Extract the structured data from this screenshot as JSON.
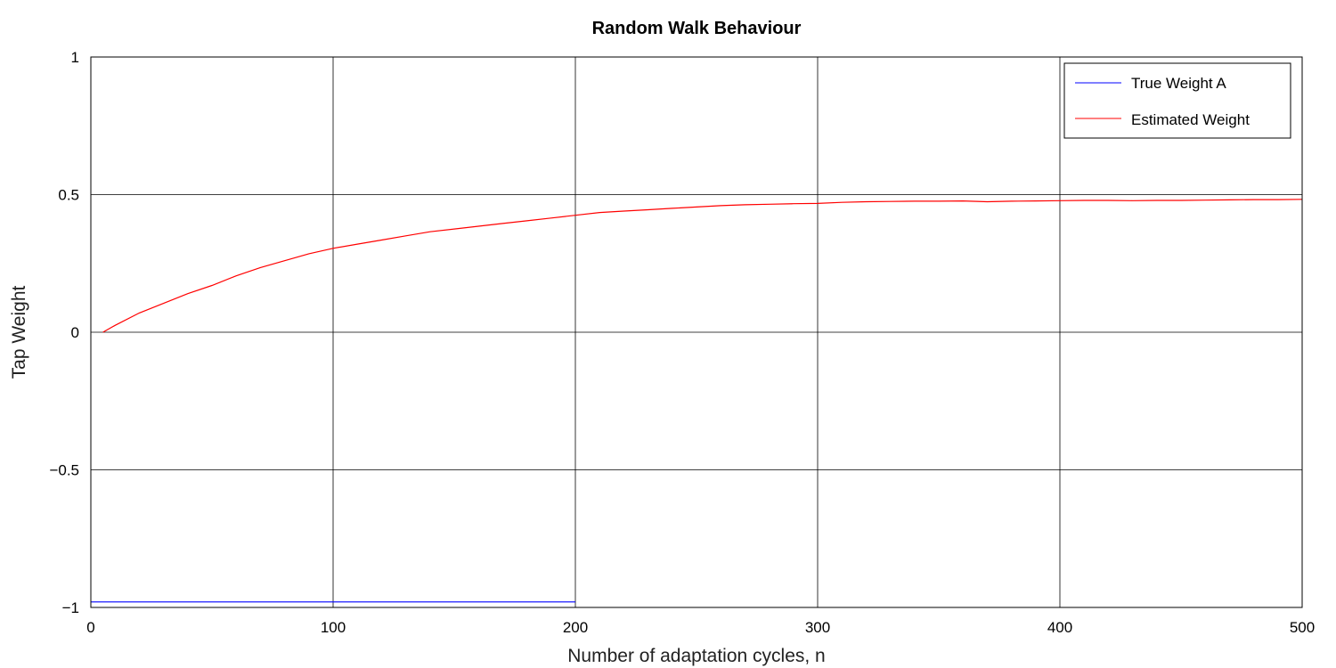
{
  "chart_data": {
    "type": "line",
    "title": "Random Walk Behaviour",
    "xlabel": "Number of adaptation cycles, n",
    "ylabel": "Tap Weight",
    "xlim": [
      0,
      500
    ],
    "ylim": [
      -1,
      1
    ],
    "xticks": [
      0,
      100,
      200,
      300,
      400,
      500
    ],
    "xtick_labels": [
      "0",
      "100",
      "200",
      "300",
      "400",
      "500"
    ],
    "yticks": [
      -1,
      -0.5,
      0,
      0.5,
      1
    ],
    "ytick_labels": [
      "−1",
      "−0.5",
      "0",
      "0.5",
      "1"
    ],
    "grid": true,
    "legend_position": "top-right",
    "series": [
      {
        "name": "True Weight A",
        "color": "#0000ff",
        "x": [
          0,
          200
        ],
        "y": [
          -0.98,
          -0.98
        ]
      },
      {
        "name": "Estimated Weight",
        "color": "#ff0000",
        "x": [
          5,
          10,
          20,
          30,
          40,
          50,
          60,
          70,
          80,
          90,
          100,
          110,
          120,
          130,
          140,
          150,
          160,
          170,
          180,
          190,
          200,
          210,
          220,
          230,
          240,
          250,
          260,
          270,
          280,
          290,
          300,
          310,
          320,
          330,
          340,
          350,
          360,
          370,
          380,
          390,
          400,
          410,
          420,
          430,
          440,
          450,
          460,
          470,
          480,
          490,
          500
        ],
        "y": [
          0.0,
          0.025,
          0.07,
          0.105,
          0.14,
          0.17,
          0.205,
          0.235,
          0.26,
          0.285,
          0.305,
          0.32,
          0.335,
          0.35,
          0.365,
          0.375,
          0.385,
          0.395,
          0.405,
          0.415,
          0.425,
          0.435,
          0.44,
          0.445,
          0.45,
          0.455,
          0.46,
          0.463,
          0.465,
          0.467,
          0.468,
          0.472,
          0.474,
          0.475,
          0.476,
          0.476,
          0.477,
          0.474,
          0.476,
          0.477,
          0.478,
          0.479,
          0.479,
          0.478,
          0.479,
          0.479,
          0.48,
          0.481,
          0.482,
          0.482,
          0.483
        ]
      }
    ]
  }
}
